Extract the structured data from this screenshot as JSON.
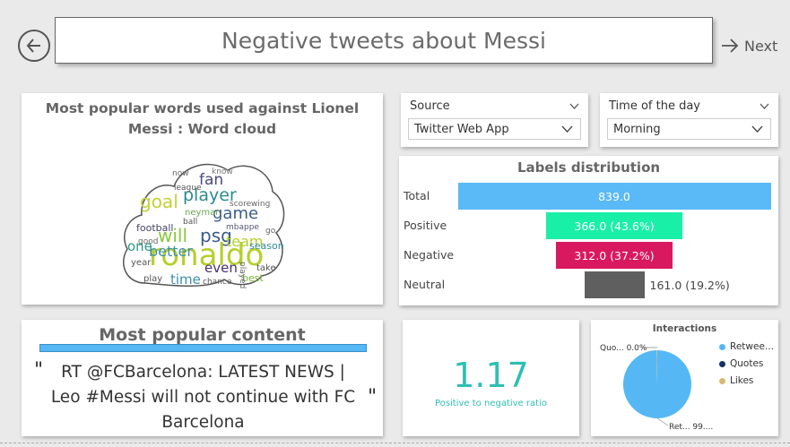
{
  "header": {
    "title": "Negative tweets about Messi",
    "next_label": "Next",
    "back_icon": "back-arrow-circle-icon",
    "next_icon": "right-arrow-icon"
  },
  "wordcloud": {
    "title": "Most popular words used against Lionel Messi : Word cloud",
    "words": [
      {
        "text": "ronaldo",
        "color": "#b5cf2a"
      },
      {
        "text": "game",
        "color": "#3b5c8e"
      },
      {
        "text": "goal",
        "color": "#c0d23a"
      },
      {
        "text": "player",
        "color": "#2d8b8b"
      },
      {
        "text": "will",
        "color": "#8ac840"
      },
      {
        "text": "psg",
        "color": "#3a5b8c"
      },
      {
        "text": "better",
        "color": "#3f8fae"
      },
      {
        "text": "team",
        "color": "#b5cf2a"
      },
      {
        "text": "fan",
        "color": "#4a4a7a"
      },
      {
        "text": "one",
        "color": "#2e9a86"
      },
      {
        "text": "time",
        "color": "#3e8fa8"
      },
      {
        "text": "even",
        "color": "#45316b"
      },
      {
        "text": "season",
        "color": "#2e8b9a"
      },
      {
        "text": "football",
        "color": "#444466"
      },
      {
        "text": "mbappe",
        "color": "#555577"
      },
      {
        "text": "neymar",
        "color": "#6aa84f"
      },
      {
        "text": "league",
        "color": "#555"
      },
      {
        "text": "score",
        "color": "#666"
      },
      {
        "text": "ball",
        "color": "#555"
      },
      {
        "text": "know",
        "color": "#777"
      },
      {
        "text": "year",
        "color": "#555"
      },
      {
        "text": "play",
        "color": "#555"
      },
      {
        "text": "chance",
        "color": "#555"
      },
      {
        "text": "best",
        "color": "#7bb33a"
      },
      {
        "text": "take",
        "color": "#555"
      },
      {
        "text": "good",
        "color": "#666"
      },
      {
        "text": "played",
        "color": "#666"
      },
      {
        "text": "wing",
        "color": "#666"
      },
      {
        "text": "go",
        "color": "#666"
      },
      {
        "text": "now",
        "color": "#666"
      }
    ]
  },
  "slicers": {
    "source": {
      "label": "Source",
      "value": "Twitter Web App"
    },
    "time": {
      "label": "Time of the day",
      "value": "Morning"
    }
  },
  "labels_distribution": {
    "title": "Labels distribution",
    "chart_data": {
      "type": "bar",
      "orientation": "horizontal-funnel",
      "categories": [
        "Total",
        "Positive",
        "Negative",
        "Neutral"
      ],
      "values": [
        839.0,
        366.0,
        312.0,
        161.0
      ],
      "labels": [
        "839.0",
        "366.0 (43.6%)",
        "312.0 (37.2%)",
        "161.0 (19.2%)"
      ],
      "colors": [
        "#5ab9f7",
        "#19f0a7",
        "#d9195f",
        "#5f5f5f"
      ]
    }
  },
  "popular_content": {
    "title": "Most popular content",
    "quote_open": "\"",
    "quote_close": "\"",
    "text": "RT @FCBarcelona: LATEST NEWS | Leo #Messi will not continue with FC Barcelona"
  },
  "ratio": {
    "value": "1.17",
    "label": "Positive to negative ratio"
  },
  "interactions": {
    "title": "Interactions",
    "chart_data": {
      "type": "pie",
      "categories": [
        "Retweets",
        "Quotes",
        "Likes"
      ],
      "values": [
        99.7,
        0.0,
        0.3
      ],
      "colors": [
        "#55b8f5",
        "#12326e",
        "#d8b873"
      ]
    },
    "legend": [
      "Retwee...",
      "Quotes",
      "Likes"
    ],
    "slice_label_quotes": "Quo... 0.0%",
    "slice_label_retweets": "Ret... 99...."
  }
}
